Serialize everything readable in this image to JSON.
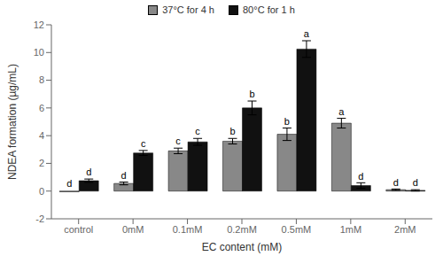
{
  "chart_data": {
    "type": "bar",
    "categories": [
      "control",
      "0mM",
      "0.1mM",
      "0.2mM",
      "0.5mM",
      "1mM",
      "2mM"
    ],
    "xlabel": "EC content (mM)",
    "ylabel": "NDEA formation (µg/mL)",
    "ylim": [
      -2,
      12
    ],
    "yticks": [
      -2,
      0,
      2,
      4,
      6,
      8,
      10,
      12
    ],
    "grid": false,
    "legend": "upper center",
    "series": [
      {
        "name": "37°C for 4 h",
        "color": "#888888",
        "values": [
          -0.05,
          0.55,
          2.9,
          3.6,
          4.1,
          4.9,
          0.1
        ],
        "errors": [
          null,
          0.1,
          0.2,
          0.2,
          0.45,
          0.35,
          0.05
        ],
        "letters": [
          "d",
          "d",
          "c",
          "b",
          "b",
          "a",
          "d"
        ]
      },
      {
        "name": "80°C for 1 h",
        "color": "#111111",
        "values": [
          0.75,
          2.75,
          3.55,
          6.0,
          10.25,
          0.4,
          0.05
        ],
        "errors": [
          0.12,
          0.18,
          0.25,
          0.5,
          0.6,
          0.2,
          0.05
        ],
        "letters": [
          "d",
          "c",
          "c",
          "b",
          "a",
          "d",
          "d"
        ]
      }
    ]
  }
}
